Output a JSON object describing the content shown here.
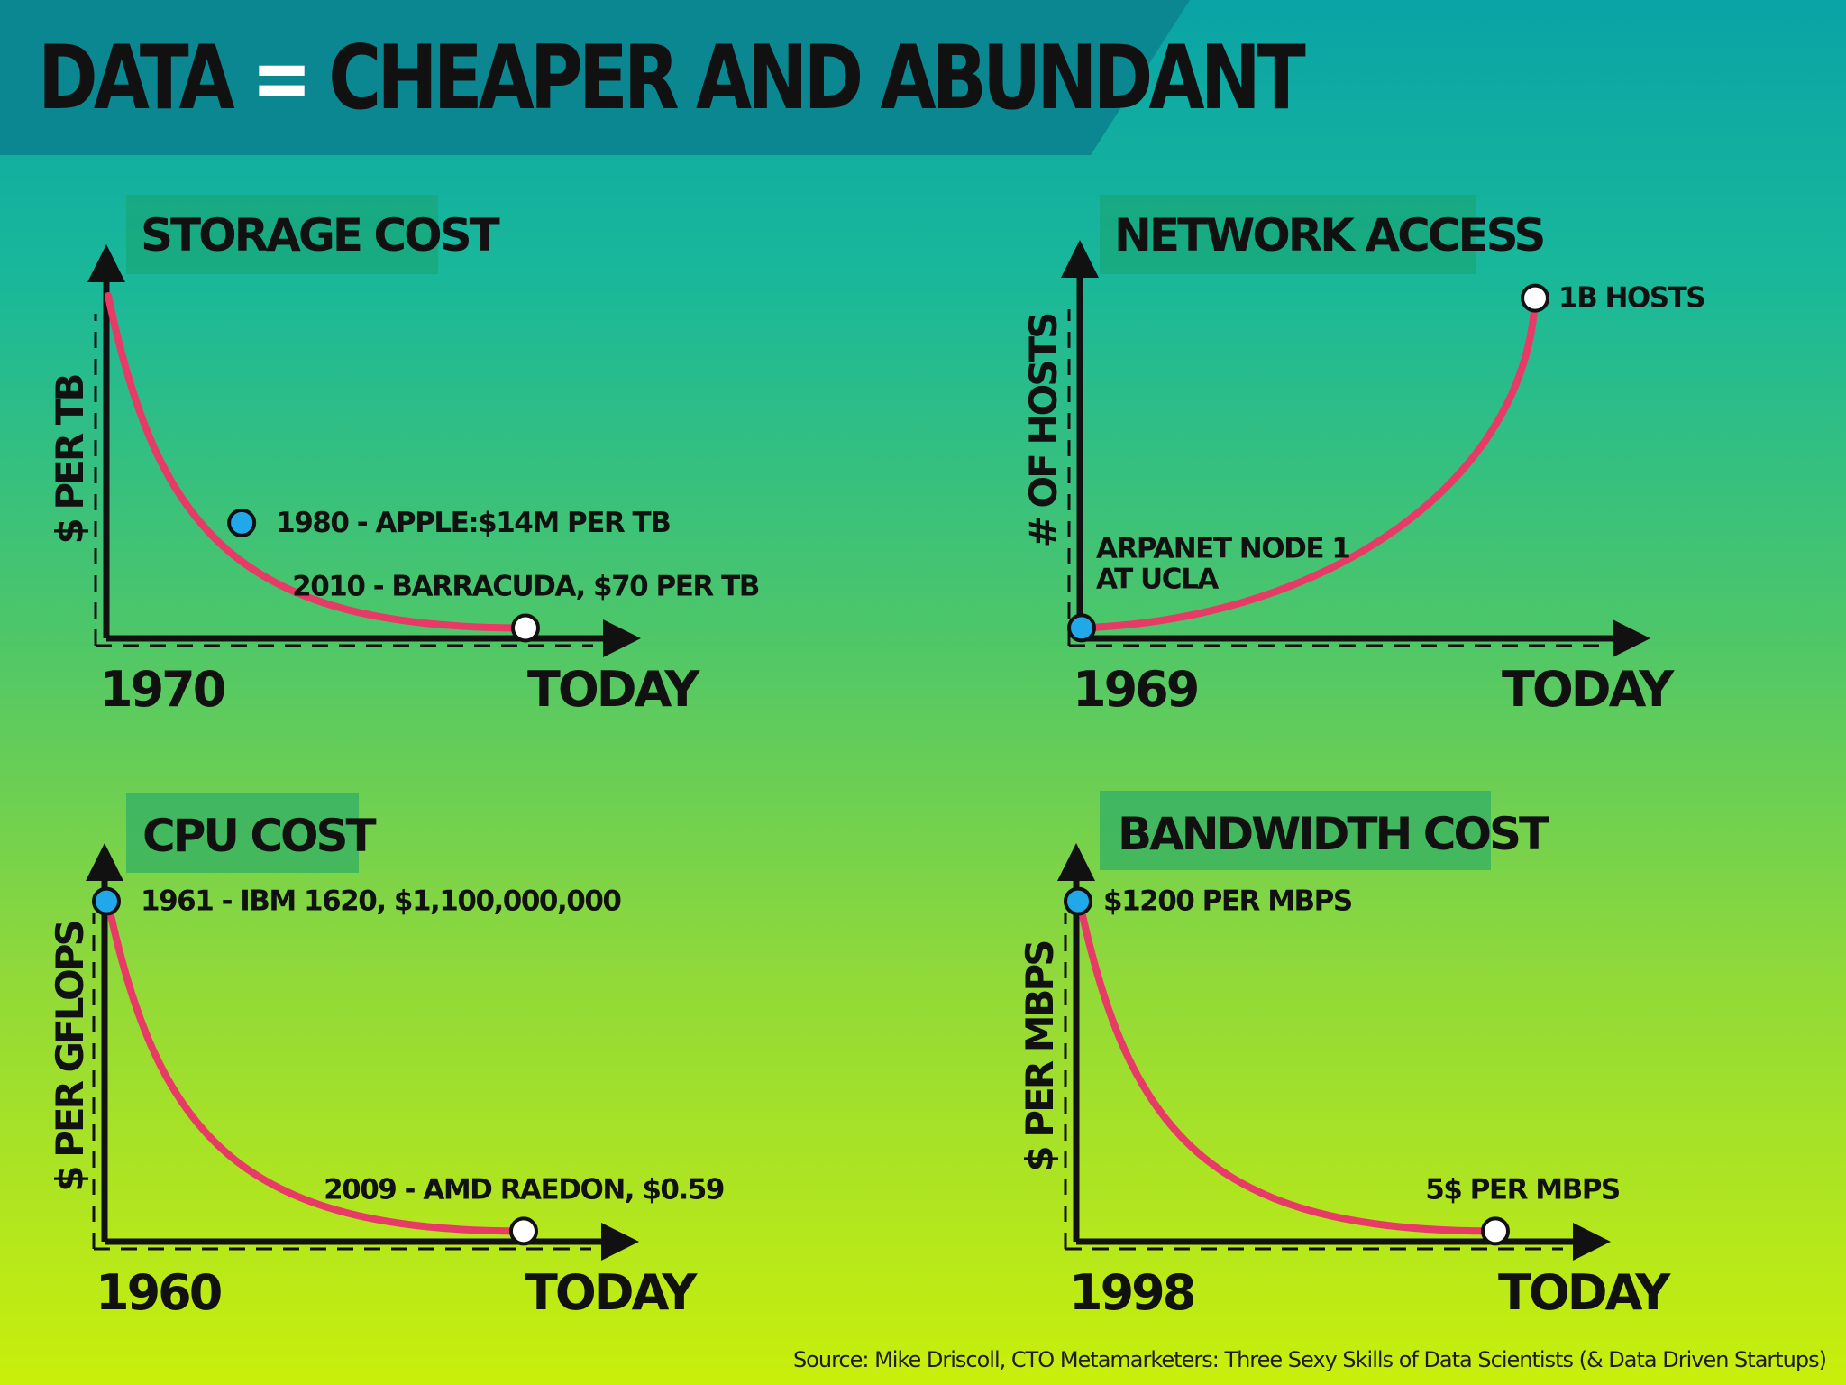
{
  "page": {
    "title_left": "DATA",
    "title_eq": "=",
    "title_right": "CHEAPER AND ABUNDANT",
    "source": "Source: Mike Driscoll, CTO Metamarketers: Three Sexy Skills of Data Scientists (& Data Driven Startups)"
  },
  "colors": {
    "curve": "#e83a66",
    "start_marker": "#20a8e8",
    "end_marker": "#ffffff"
  },
  "chart_data": [
    {
      "type": "line",
      "title": "STORAGE COST",
      "ylabel": "$ PER TB",
      "xlabel": "",
      "trend": "decreasing",
      "x_ticks": [
        "1970",
        "TODAY"
      ],
      "markers": [
        {
          "x": 0.32,
          "y": 0.33,
          "label": "1980 - APPLE:$14M PER TB",
          "style": "start"
        },
        {
          "x": 1.0,
          "y": 0.02,
          "label": "2010 - BARRACUDA, $70 PER TB",
          "style": "end"
        }
      ]
    },
    {
      "type": "line",
      "title": "NETWORK ACCESS",
      "ylabel": "# OF HOSTS",
      "xlabel": "",
      "trend": "increasing",
      "x_ticks": [
        "1969",
        "TODAY"
      ],
      "markers": [
        {
          "x": 0.0,
          "y": 0.02,
          "label": "ARPANET NODE 1\nAT UCLA",
          "style": "start"
        },
        {
          "x": 1.0,
          "y": 0.98,
          "label": "1B HOSTS",
          "style": "end"
        }
      ]
    },
    {
      "type": "line",
      "title": "CPU COST",
      "ylabel": "$ PER GFLOPS",
      "xlabel": "",
      "trend": "decreasing",
      "x_ticks": [
        "1960",
        "TODAY"
      ],
      "markers": [
        {
          "x": 0.0,
          "y": 0.98,
          "label": "1961 - IBM 1620, $1,100,000,000",
          "style": "start"
        },
        {
          "x": 1.0,
          "y": 0.02,
          "label": "2009 - AMD RAEDON, $0.59",
          "style": "end"
        }
      ]
    },
    {
      "type": "line",
      "title": "BANDWIDTH COST",
      "ylabel": "$ PER MBPS",
      "xlabel": "",
      "trend": "decreasing",
      "x_ticks": [
        "1998",
        "TODAY"
      ],
      "markers": [
        {
          "x": 0.0,
          "y": 0.98,
          "label": "$1200 PER MBPS",
          "style": "start"
        },
        {
          "x": 1.0,
          "y": 0.02,
          "label": "5$ PER MBPS",
          "style": "end"
        }
      ]
    }
  ]
}
